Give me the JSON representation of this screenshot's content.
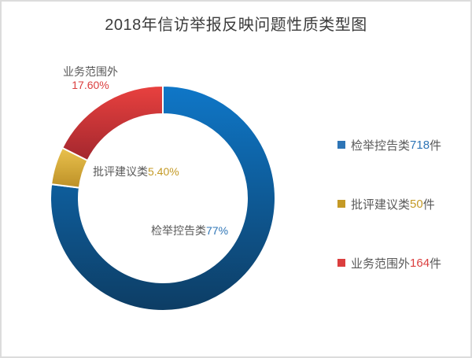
{
  "frame": {
    "background": "#ffffff",
    "border_color": "#dcdcdc"
  },
  "chart_data": {
    "type": "pie",
    "subtype": "doughnut",
    "title": "2018年信访举报反映问题性质类型图",
    "title_color": "#3b3b3b",
    "text_color": "#595959",
    "legend_position": "right",
    "direction": "clockwise",
    "start_angle_deg": 0,
    "slice_gap_color": "#ffffff",
    "series": [
      {
        "name": "检举控告类",
        "value": 718,
        "unit": "件",
        "percent": 77,
        "percent_text": "77%",
        "accent": "#2e75b6",
        "grad_start": "#0f77c8",
        "grad_end": "#0d3d64"
      },
      {
        "name": "批评建议类",
        "value": 50,
        "unit": "件",
        "percent": 5.4,
        "percent_text": "5.40%",
        "accent": "#c49a26",
        "grad_start": "#eac24e",
        "grad_end": "#bd9027"
      },
      {
        "name": "业务范围外",
        "value": 164,
        "unit": "件",
        "percent": 17.6,
        "percent_text": "17.60%",
        "accent": "#db3e3e",
        "grad_start": "#e9413f",
        "grad_end": "#a3272e"
      }
    ]
  }
}
